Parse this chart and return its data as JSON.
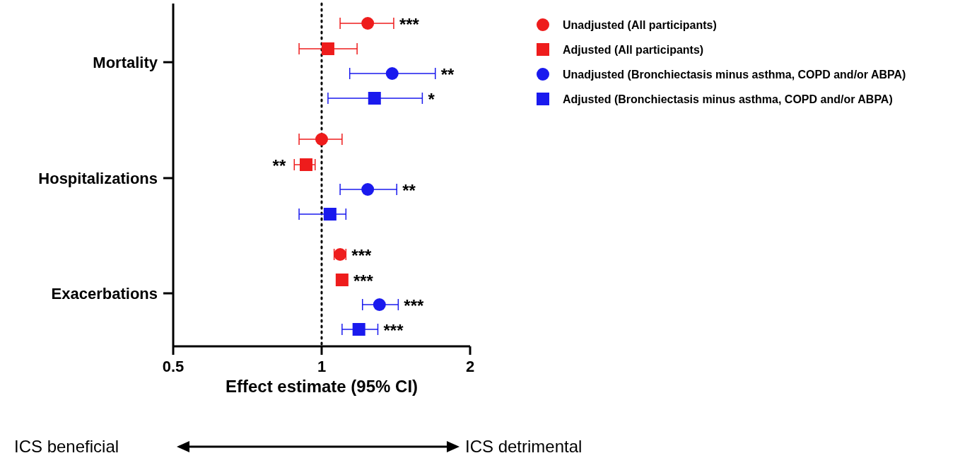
{
  "chart_data": {
    "type": "scatter",
    "orientation": "horizontal",
    "categories": [
      "Mortality",
      "Hospitalizations",
      "Exacerbations"
    ],
    "xlabel": "Effect estimate (95% CI)",
    "log": "x",
    "xlim": [
      0.5,
      2
    ],
    "xticks": [
      0.5,
      1,
      2
    ],
    "legend": "right",
    "ref_lines": [
      {
        "axis": "x",
        "value": 1,
        "color": "#000000",
        "line_style": "dotted"
      }
    ],
    "series": [
      {
        "name": "Unadjusted (All participants)",
        "color": "#ee1c1c",
        "marker": "circle",
        "values": [
          1.24,
          1.0,
          1.09
        ],
        "errors": [
          [
            1.09,
            1.4
          ],
          [
            0.9,
            1.1
          ],
          [
            1.06,
            1.12
          ]
        ],
        "value_labels": [
          "***",
          null,
          "***"
        ]
      },
      {
        "name": "Adjusted (All participants)",
        "color": "#ee1c1c",
        "marker": "square",
        "values": [
          1.03,
          0.93,
          1.1
        ],
        "errors": [
          [
            0.9,
            1.18
          ],
          [
            0.88,
            0.97
          ],
          null
        ],
        "value_labels": [
          null,
          "**",
          "***"
        ]
      },
      {
        "name": "Unadjusted (Bronchiectasis minus asthma, COPD and/or ABPA)",
        "color": "#1a1aee",
        "marker": "circle",
        "values": [
          1.39,
          1.24,
          1.31
        ],
        "errors": [
          [
            1.14,
            1.7
          ],
          [
            1.09,
            1.42
          ],
          [
            1.21,
            1.43
          ]
        ],
        "value_labels": [
          "**",
          "**",
          "***"
        ]
      },
      {
        "name": "Adjusted (Bronchiectasis minus asthma, COPD and/or ABPA)",
        "color": "#1a1aee",
        "marker": "square",
        "values": [
          1.28,
          1.04,
          1.19
        ],
        "errors": [
          [
            1.03,
            1.6
          ],
          [
            0.9,
            1.12
          ],
          [
            1.1,
            1.3
          ]
        ],
        "value_labels": [
          "*",
          null,
          "***"
        ]
      }
    ],
    "annotations": [
      "ICS beneficial",
      "ICS detrimental"
    ]
  }
}
